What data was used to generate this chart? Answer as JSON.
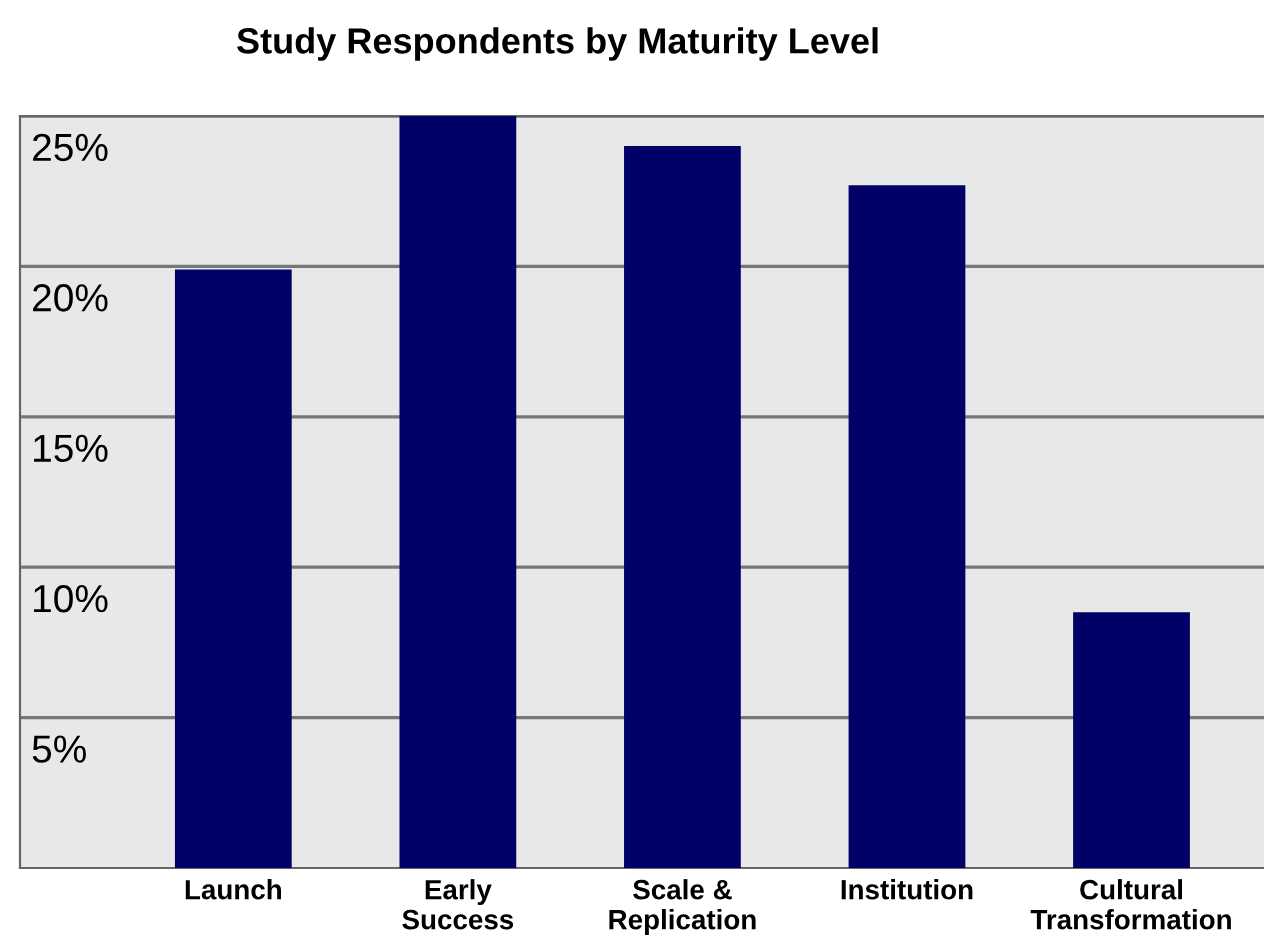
{
  "chart_data": {
    "type": "bar",
    "title": "Study Respondents by Maturity Level",
    "categories": [
      "Launch",
      "Early\nSuccess",
      "Scale &\nReplication",
      "Institution",
      "Cultural\nTransformation"
    ],
    "values": [
      19.9,
      25,
      24,
      22.7,
      8.5
    ],
    "color": "#000066",
    "ylim": [
      0,
      25
    ],
    "yticks": [
      {
        "value": 5,
        "label": "5%"
      },
      {
        "value": 10,
        "label": "10%"
      },
      {
        "value": 15,
        "label": "15%"
      },
      {
        "value": 20,
        "label": "20%"
      },
      {
        "value": 25,
        "label": "25%"
      }
    ],
    "grid": "y",
    "legend": false
  }
}
